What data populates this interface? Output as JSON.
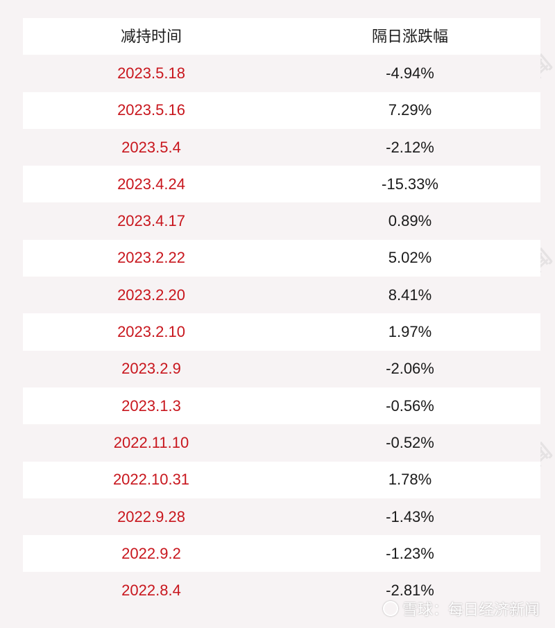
{
  "table": {
    "headers": [
      "减持时间",
      "隔日涨跌幅"
    ],
    "rows": [
      {
        "date": "2023.5.18",
        "change": "-4.94%"
      },
      {
        "date": "2023.5.16",
        "change": "7.29%"
      },
      {
        "date": "2023.5.4",
        "change": "-2.12%"
      },
      {
        "date": "2023.4.24",
        "change": "-15.33%"
      },
      {
        "date": "2023.4.17",
        "change": "0.89%"
      },
      {
        "date": "2023.2.22",
        "change": "5.02%"
      },
      {
        "date": "2023.2.20",
        "change": "8.41%"
      },
      {
        "date": "2023.2.10",
        "change": "1.97%"
      },
      {
        "date": "2023.2.9",
        "change": "-2.06%"
      },
      {
        "date": "2023.1.3",
        "change": "-0.56%"
      },
      {
        "date": "2022.11.10",
        "change": "-0.52%"
      },
      {
        "date": "2022.10.31",
        "change": "1.78%"
      },
      {
        "date": "2022.9.28",
        "change": "-1.43%"
      },
      {
        "date": "2022.9.2",
        "change": "-1.23%"
      },
      {
        "date": "2022.8.4",
        "change": "-2.81%"
      }
    ]
  },
  "watermark": "每日经济新闻",
  "footer": {
    "text": "雪球：每日经济新闻",
    "icon": "xueqiu-logo-icon"
  },
  "colors": {
    "date": "#c8161d",
    "value": "#1a1a1a",
    "tint": "#f7f3f4"
  }
}
